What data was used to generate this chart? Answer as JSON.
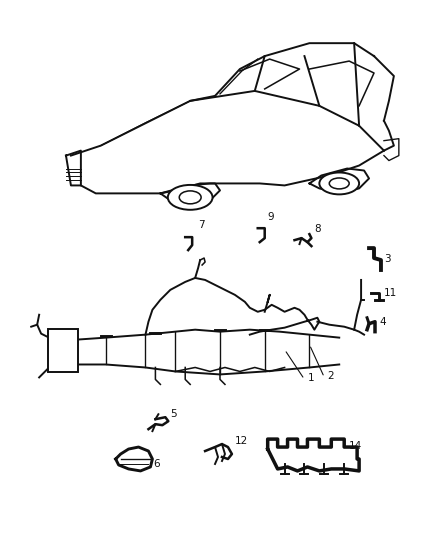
{
  "bg_color": "#ffffff",
  "line_color": "#111111",
  "fig_width": 4.38,
  "fig_height": 5.33,
  "dpi": 100
}
